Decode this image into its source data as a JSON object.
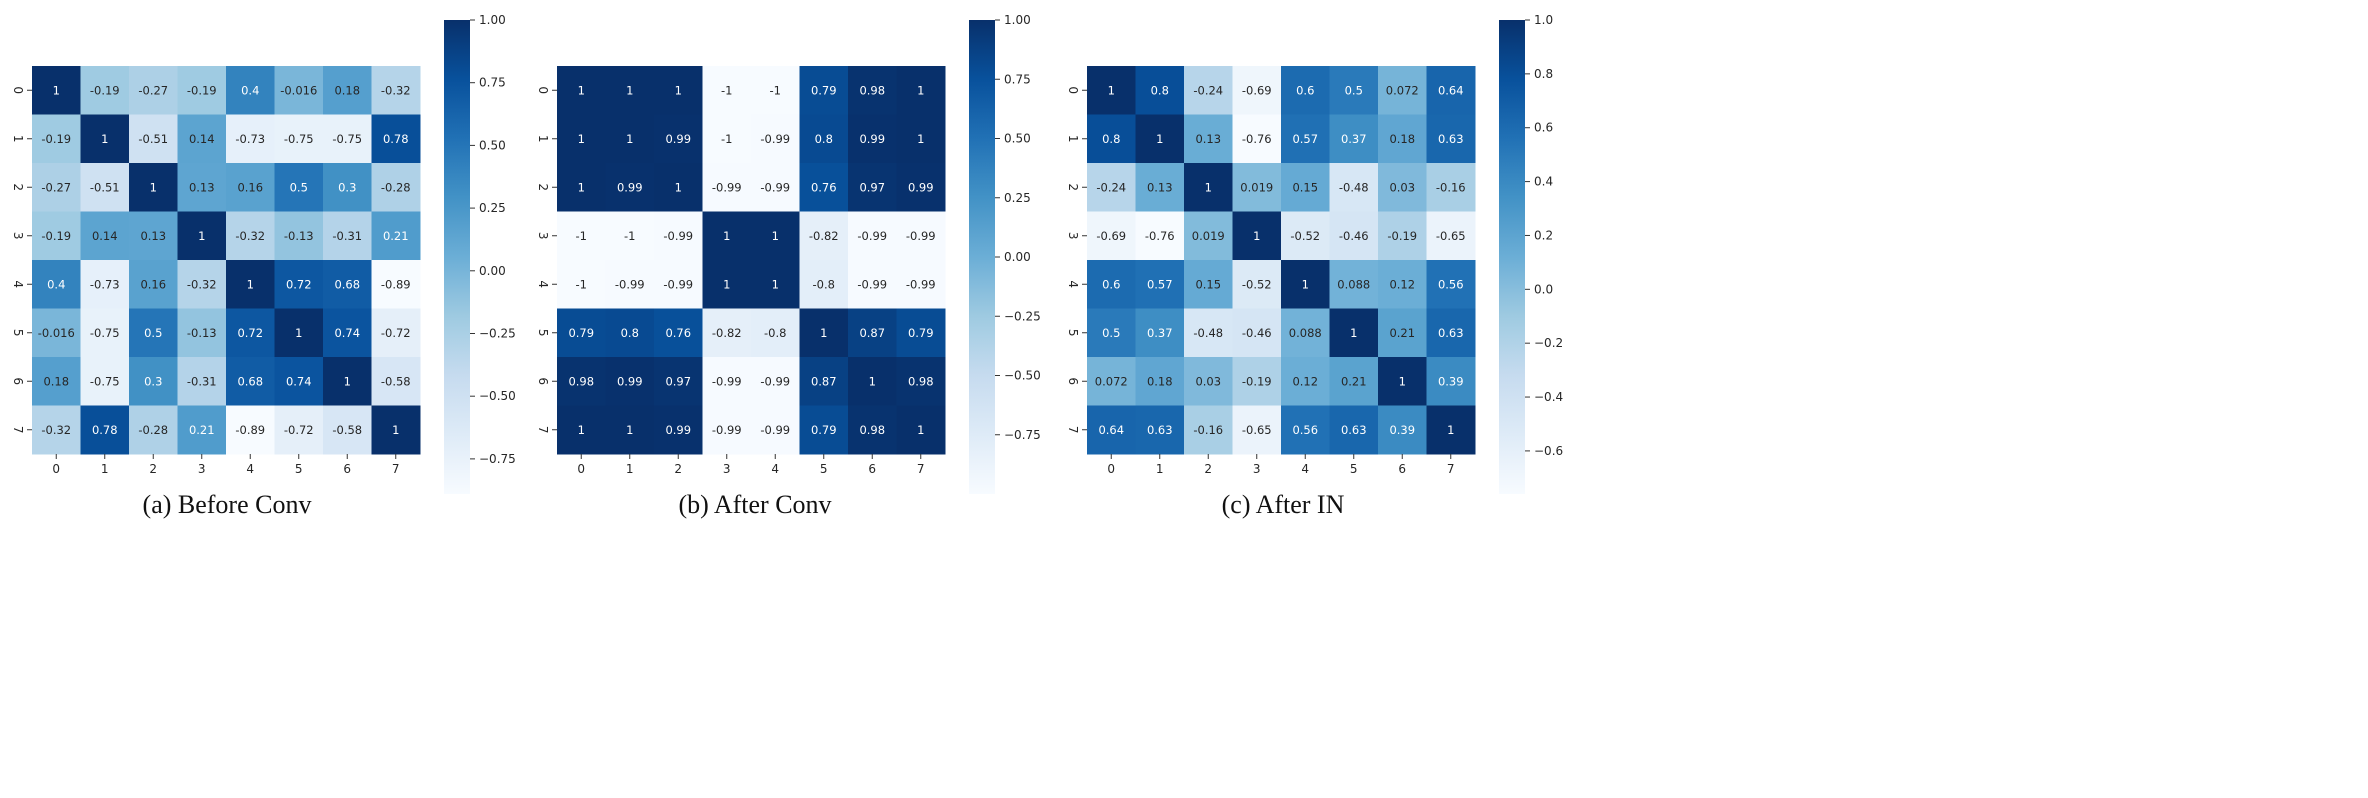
{
  "chart_data": [
    {
      "type": "heatmap",
      "title": "(a) Before Conv",
      "x_tick_labels": [
        "0",
        "1",
        "2",
        "3",
        "4",
        "5",
        "6",
        "7"
      ],
      "y_tick_labels": [
        "0",
        "1",
        "2",
        "3",
        "4",
        "5",
        "6",
        "7"
      ],
      "cell_labels": [
        [
          "1",
          "-0.19",
          "-0.27",
          "-0.19",
          "0.4",
          "-0.016",
          "0.18",
          "-0.32"
        ],
        [
          "-0.19",
          "1",
          "-0.51",
          "0.14",
          "-0.73",
          "-0.75",
          "-0.75",
          "0.78"
        ],
        [
          "-0.27",
          "-0.51",
          "1",
          "0.13",
          "0.16",
          "0.5",
          "0.3",
          "-0.28"
        ],
        [
          "-0.19",
          "0.14",
          "0.13",
          "1",
          "-0.32",
          "-0.13",
          "-0.31",
          "0.21"
        ],
        [
          "0.4",
          "-0.73",
          "0.16",
          "-0.32",
          "1",
          "0.72",
          "0.68",
          "-0.89"
        ],
        [
          "-0.016",
          "-0.75",
          "0.5",
          "-0.13",
          "0.72",
          "1",
          "0.74",
          "-0.72"
        ],
        [
          "0.18",
          "-0.75",
          "0.3",
          "-0.31",
          "0.68",
          "0.74",
          "1",
          "-0.58"
        ],
        [
          "-0.32",
          "0.78",
          "-0.28",
          "0.21",
          "-0.89",
          "-0.72",
          "-0.58",
          "1"
        ]
      ],
      "colorbar": {
        "vmin": -0.89,
        "vmax": 1.0,
        "ticks": [
          1.0,
          0.75,
          0.5,
          0.25,
          0.0,
          -0.25,
          -0.5,
          -0.75
        ],
        "tick_labels": [
          "1.00",
          "0.75",
          "0.50",
          "0.25",
          "0.00",
          "−0.25",
          "−0.50",
          "−0.75"
        ]
      },
      "colormap": "Blues"
    },
    {
      "type": "heatmap",
      "title": "(b) After Conv",
      "x_tick_labels": [
        "0",
        "1",
        "2",
        "3",
        "4",
        "5",
        "6",
        "7"
      ],
      "y_tick_labels": [
        "0",
        "1",
        "2",
        "3",
        "4",
        "5",
        "6",
        "7"
      ],
      "cell_labels": [
        [
          "1",
          "1",
          "1",
          "-1",
          "-1",
          "0.79",
          "0.98",
          "1"
        ],
        [
          "1",
          "1",
          "0.99",
          "-1",
          "-0.99",
          "0.8",
          "0.99",
          "1"
        ],
        [
          "1",
          "0.99",
          "1",
          "-0.99",
          "-0.99",
          "0.76",
          "0.97",
          "0.99"
        ],
        [
          "-1",
          "-1",
          "-0.99",
          "1",
          "1",
          "-0.82",
          "-0.99",
          "-0.99"
        ],
        [
          "-1",
          "-0.99",
          "-0.99",
          "1",
          "1",
          "-0.8",
          "-0.99",
          "-0.99"
        ],
        [
          "0.79",
          "0.8",
          "0.76",
          "-0.82",
          "-0.8",
          "1",
          "0.87",
          "0.79"
        ],
        [
          "0.98",
          "0.99",
          "0.97",
          "-0.99",
          "-0.99",
          "0.87",
          "1",
          "0.98"
        ],
        [
          "1",
          "1",
          "0.99",
          "-0.99",
          "-0.99",
          "0.79",
          "0.98",
          "1"
        ]
      ],
      "colorbar": {
        "vmin": -1.0,
        "vmax": 1.0,
        "ticks": [
          1.0,
          0.75,
          0.5,
          0.25,
          0.0,
          -0.25,
          -0.5,
          -0.75
        ],
        "tick_labels": [
          "1.00",
          "0.75",
          "0.50",
          "0.25",
          "0.00",
          "−0.25",
          "−0.50",
          "−0.75"
        ]
      },
      "colormap": "Blues"
    },
    {
      "type": "heatmap",
      "title": "(c) After IN",
      "x_tick_labels": [
        "0",
        "1",
        "2",
        "3",
        "4",
        "5",
        "6",
        "7"
      ],
      "y_tick_labels": [
        "0",
        "1",
        "2",
        "3",
        "4",
        "5",
        "6",
        "7"
      ],
      "cell_labels": [
        [
          "1",
          "0.8",
          "-0.24",
          "-0.69",
          "0.6",
          "0.5",
          "0.072",
          "0.64"
        ],
        [
          "0.8",
          "1",
          "0.13",
          "-0.76",
          "0.57",
          "0.37",
          "0.18",
          "0.63"
        ],
        [
          "-0.24",
          "0.13",
          "1",
          "0.019",
          "0.15",
          "-0.48",
          "0.03",
          "-0.16"
        ],
        [
          "-0.69",
          "-0.76",
          "0.019",
          "1",
          "-0.52",
          "-0.46",
          "-0.19",
          "-0.65"
        ],
        [
          "0.6",
          "0.57",
          "0.15",
          "-0.52",
          "1",
          "0.088",
          "0.12",
          "0.56"
        ],
        [
          "0.5",
          "0.37",
          "-0.48",
          "-0.46",
          "0.088",
          "1",
          "0.21",
          "0.63"
        ],
        [
          "0.072",
          "0.18",
          "0.03",
          "-0.19",
          "0.12",
          "0.21",
          "1",
          "0.39"
        ],
        [
          "0.64",
          "0.63",
          "-0.16",
          "-0.65",
          "0.56",
          "0.63",
          "0.39",
          "1"
        ]
      ],
      "colorbar": {
        "vmin": -0.76,
        "vmax": 1.0,
        "ticks": [
          1.0,
          0.8,
          0.6,
          0.4,
          0.2,
          0.0,
          -0.2,
          -0.4,
          -0.6
        ],
        "tick_labels": [
          "1.0",
          "0.8",
          "0.6",
          "0.4",
          "0.2",
          "0.0",
          "−0.2",
          "−0.4",
          "−0.6"
        ]
      },
      "colormap": "Blues"
    }
  ]
}
